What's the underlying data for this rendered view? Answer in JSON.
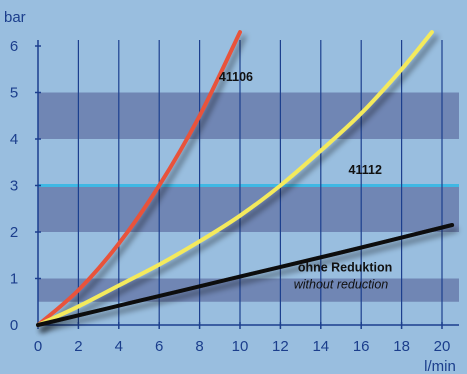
{
  "chart_data": {
    "type": "line",
    "xlabel": "l/min",
    "ylabel": "bar",
    "xlim": [
      0,
      20.5
    ],
    "ylim": [
      0,
      6.3
    ],
    "x_ticks": [
      0,
      2,
      4,
      6,
      8,
      10,
      12,
      14,
      16,
      18,
      20
    ],
    "y_ticks": [
      0,
      1,
      2,
      3,
      4,
      5,
      6
    ],
    "x_tick_labels": [
      "0",
      "2",
      "4",
      "6",
      "8",
      "10",
      "12",
      "14",
      "16",
      "18",
      "20"
    ],
    "y_tick_labels": [
      "0",
      "1",
      "2",
      "3",
      "4",
      "5",
      "6"
    ],
    "grid": true,
    "bands": [
      [
        0.5,
        1.0
      ],
      [
        2.0,
        3.0
      ],
      [
        4.0,
        5.0
      ]
    ],
    "reference_line": 3,
    "colors": {
      "background": "#99BEDF",
      "band": "#7086B4",
      "grid": "#1C3F8E",
      "reference": "#3FB8E4",
      "axis_text": "#1B3E8C"
    },
    "series": [
      {
        "name": "41106",
        "color": "#E8523A",
        "x": [
          0,
          2,
          4,
          6,
          8,
          10
        ],
        "y": [
          0,
          0.75,
          1.75,
          3.0,
          4.5,
          6.3
        ]
      },
      {
        "name": "41112",
        "color": "#F4EA5C",
        "x": [
          0,
          2,
          4,
          6,
          8,
          10,
          12,
          14,
          16,
          18,
          19.5
        ],
        "y": [
          0,
          0.4,
          0.85,
          1.3,
          1.8,
          2.35,
          3.0,
          3.75,
          4.55,
          5.5,
          6.3
        ]
      },
      {
        "name": "ohne Reduktion",
        "subname": "without reduction",
        "color": "#0B0B0B",
        "x": [
          0,
          5,
          10,
          15,
          20.5
        ],
        "y": [
          0,
          0.52,
          1.04,
          1.56,
          2.15
        ]
      }
    ],
    "labels": [
      {
        "text": "41106",
        "x": 9.8,
        "y": 5.25,
        "bold": true,
        "italic": false
      },
      {
        "text": "41112",
        "x": 16.2,
        "y": 3.25,
        "bold": true,
        "italic": false
      },
      {
        "text": "ohne Reduktion",
        "x": 15.2,
        "y": 1.15,
        "bold": true,
        "italic": false
      },
      {
        "text": "without reduction",
        "x": 15.0,
        "y": 0.78,
        "bold": false,
        "italic": true
      }
    ]
  }
}
